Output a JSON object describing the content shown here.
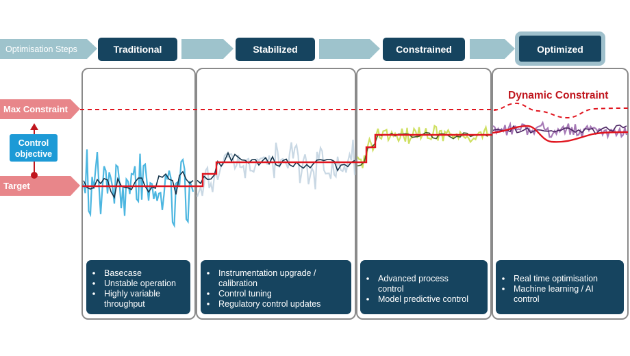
{
  "steps_label": "Optimisation Steps",
  "stages": [
    {
      "title": "Traditional",
      "bullets": [
        "Basecase",
        "Unstable operation",
        "Highly variable",
        "throughput"
      ],
      "bullet_starts": [
        true,
        true,
        true,
        false
      ],
      "noise_color": "#4cb6e0",
      "signal_color": "#14334a"
    },
    {
      "title": "Stabilized",
      "bullets": [
        "Instrumentation upgrade /",
        "calibration",
        "Control tuning",
        "Regulatory control updates"
      ],
      "bullet_starts": [
        true,
        false,
        true,
        true
      ],
      "noise_color": "#c9d8e4",
      "signal_color": "#14334a"
    },
    {
      "title": "Constrained",
      "bullets": [
        "Advanced process",
        "control",
        "Model predictive control"
      ],
      "bullet_starts": [
        true,
        false,
        true
      ],
      "noise_color": "#cfe063",
      "signal_color": "#3f5a24"
    },
    {
      "title": "Optimized",
      "bullets": [
        "Real time optimisation",
        "Machine learning / AI",
        "control"
      ],
      "bullet_starts": [
        true,
        true,
        false
      ],
      "noise_color": "#a578b5",
      "signal_color": "#4a2361"
    }
  ],
  "labels": {
    "max_constraint": "Max Constraint",
    "target": "Target",
    "control_objective": [
      "Control",
      "objective"
    ],
    "dynamic_constraint": "Dynamic Constraint"
  },
  "colors": {
    "stage_box": "#16445f",
    "arrow": "#9ec3cc",
    "side_arrow": "#e8868a",
    "constraint": "#e0141e",
    "objective_box": "#1d9ad6"
  }
}
